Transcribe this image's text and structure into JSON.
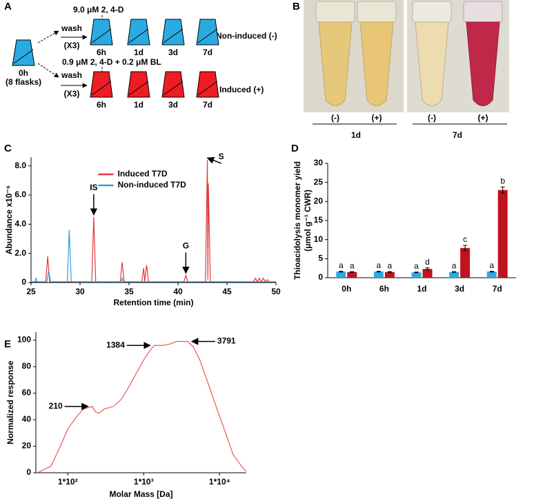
{
  "panels": {
    "A": {
      "letter": "A",
      "top_treatment": "9.0 μM 2, 4-D",
      "bottom_treatment": "0.9 μM 2, 4-D + 0.2 μM BL",
      "wash_top": "wash",
      "repeat_top": "(X3)",
      "wash_bottom": "wash",
      "repeat_bottom": "(X3)",
      "start_time": "0h",
      "start_note": "(8 flasks)",
      "top_times": [
        "6h",
        "1d",
        "3d",
        "7d"
      ],
      "bottom_times": [
        "6h",
        "1d",
        "3d",
        "7d"
      ],
      "top_group": "Non-induced (-)",
      "bottom_group": "Induced (+)"
    },
    "B": {
      "letter": "B",
      "tube_labels": [
        "(-)",
        "(+)",
        "(-)",
        "(+)"
      ],
      "days": [
        "1d",
        "7d"
      ]
    }
  },
  "chart_data": [
    {
      "panel": "C",
      "type": "line",
      "x_label": "Retention time (min)",
      "y_label": "Abundance x10⁻⁶",
      "xlim": [
        25,
        50
      ],
      "xticks": [
        25,
        30,
        35,
        40,
        45,
        50
      ],
      "ylim": [
        0,
        8.6
      ],
      "yticks": [
        0,
        {
          "value": 2,
          "label": "2.0"
        },
        {
          "value": 4,
          "label": "4.0"
        },
        {
          "value": 6,
          "label": "6.0"
        },
        {
          "value": 8,
          "label": "8.0"
        }
      ],
      "legend": "top-center",
      "series": [
        {
          "name": "Induced T7D",
          "color": "#e0393e",
          "x": [
            25,
            26.5,
            26.7,
            26.9,
            31.2,
            31.4,
            31.6,
            34.1,
            34.3,
            34.5,
            36.3,
            36.5,
            36.6,
            36.8,
            37.0,
            40.6,
            40.8,
            41.0,
            42.8,
            43.0,
            43.05,
            43.1,
            43.3,
            47.7,
            47.9,
            48.1,
            48.3,
            48.5,
            48.7,
            48.9,
            49.1,
            49.3,
            50
          ],
          "values": [
            0.05,
            0.05,
            1.8,
            0.05,
            0.05,
            4.5,
            0.05,
            0.05,
            1.4,
            0.05,
            0.05,
            1.0,
            0.05,
            1.2,
            0.05,
            0.05,
            0.5,
            0.05,
            0.05,
            8.4,
            0.2,
            6.8,
            0.05,
            0.05,
            0.3,
            0.05,
            0.3,
            0.05,
            0.3,
            0.05,
            0.2,
            0.05,
            0.05
          ]
        },
        {
          "name": "Non-induced T7D",
          "color": "#3a9ad9",
          "x": [
            25,
            25.4,
            25.5,
            25.6,
            26.6,
            26.8,
            27.0,
            28.7,
            28.9,
            29.1,
            34.2,
            34.3,
            34.4,
            50
          ],
          "values": [
            0.05,
            0.05,
            0.3,
            0.05,
            0.05,
            0.8,
            0.05,
            0.05,
            3.6,
            0.05,
            0.05,
            0.3,
            0.05,
            0.05
          ]
        }
      ],
      "annotations": [
        {
          "text": "IS",
          "x": 31.4,
          "y": 4.5
        },
        {
          "text": "G",
          "x": 40.8,
          "y": 0.5
        },
        {
          "text": "S",
          "x": 43.0,
          "y": 8.4
        }
      ]
    },
    {
      "panel": "D",
      "type": "bar",
      "y_label": "Thioacidolysis monomer yield",
      "y_label_2": "(μmol g⁻¹ CWR)",
      "categories": [
        "0h",
        "6h",
        "1d",
        "3d",
        "7d"
      ],
      "ylim": [
        0,
        30
      ],
      "yticks": [
        0,
        5,
        10,
        15,
        20,
        25,
        30
      ],
      "series": [
        {
          "color": "#29abe2",
          "values": [
            1.6,
            1.6,
            1.4,
            1.5,
            1.6
          ],
          "errors": [
            0.1,
            0.1,
            0.1,
            0.1,
            0.1
          ],
          "letters": [
            "a",
            "a",
            "a",
            "a",
            "a"
          ]
        },
        {
          "color": "#c1121f",
          "values": [
            1.5,
            1.5,
            2.3,
            7.8,
            23.0
          ],
          "errors": [
            0.1,
            0.1,
            0.3,
            0.7,
            0.8
          ],
          "letters": [
            "a",
            "a",
            "d",
            "c",
            "b"
          ]
        }
      ]
    },
    {
      "panel": "E",
      "type": "line",
      "log_x": true,
      "x_label": "Molar Mass [Da]",
      "y_label": "Normalized response",
      "xlim": [
        38,
        22500
      ],
      "xticks": [
        {
          "value": 100,
          "label": "1*10²"
        },
        {
          "value": 1000,
          "label": "1*10³"
        },
        {
          "value": 10000,
          "label": "1*10⁴"
        }
      ],
      "ylim": [
        0,
        106
      ],
      "yticks": [
        0,
        20,
        40,
        60,
        80,
        100
      ],
      "series": [
        {
          "color": "#e8584f",
          "x": [
            40,
            60,
            80,
            100,
            130,
            160,
            210,
            230,
            260,
            300,
            400,
            500,
            600,
            800,
            1000,
            1200,
            1384,
            1800,
            2200,
            2700,
            3300,
            3791,
            4500,
            5500,
            7000,
            9000,
            12000,
            15000,
            20000,
            22500
          ],
          "values": [
            0,
            5,
            20,
            33,
            42,
            48,
            50,
            46,
            45,
            48,
            50,
            55,
            62,
            75,
            85,
            92,
            96,
            96,
            97,
            99,
            99,
            99,
            95,
            85,
            68,
            50,
            30,
            14,
            4,
            1
          ]
        }
      ],
      "annotations": [
        {
          "text": "210",
          "x": 210,
          "y": 50
        },
        {
          "text": "1384",
          "x": 1384,
          "y": 96
        },
        {
          "text": "3791",
          "x": 3791,
          "y": 99
        }
      ]
    }
  ]
}
